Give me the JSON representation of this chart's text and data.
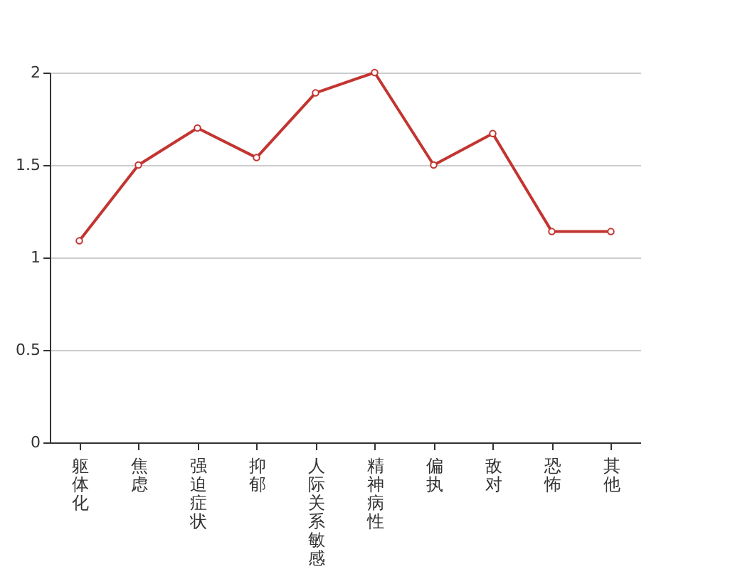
{
  "chart_data": {
    "type": "line",
    "categories": [
      "躯体化",
      "焦虑",
      "强迫症状",
      "抑郁",
      "人际关系敏感",
      "精神病性",
      "偏执",
      "敌对",
      "恐怖",
      "其他"
    ],
    "series": [
      {
        "color": "#c23531",
        "values": [
          1.09,
          1.5,
          1.7,
          1.54,
          1.89,
          2.0,
          1.5,
          1.67,
          1.14,
          1.14
        ]
      }
    ],
    "ylim": [
      0,
      2
    ],
    "yticks": [
      0,
      0.5,
      1,
      1.5,
      2
    ],
    "grid": "y",
    "marker": "circle"
  }
}
